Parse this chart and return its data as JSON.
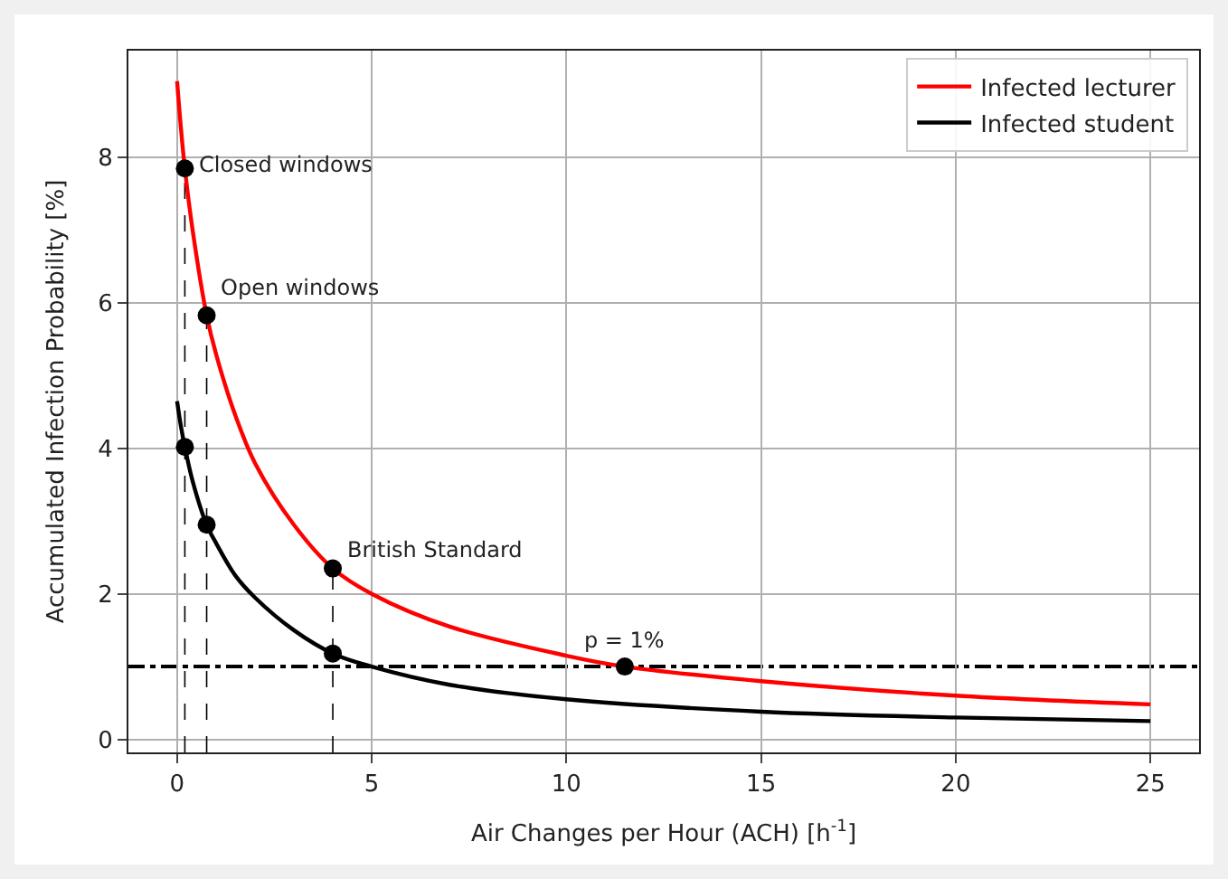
{
  "chart_data": {
    "type": "line",
    "xlabel": "Air Changes per Hour (ACH) [h$^{-1}$]",
    "ylabel": "Accumulated Infection Probability [%]",
    "xlim": [
      -1.25,
      26.25
    ],
    "xticks": [
      0,
      5,
      10,
      15,
      20,
      25
    ],
    "ylim": [
      -0.18,
      9.47
    ],
    "yticks": [
      0,
      2,
      4,
      6,
      8
    ],
    "grid": true,
    "legend": "top right",
    "series": [
      {
        "color": "#000000",
        "line_style": "dashed",
        "x": [
          0.2,
          0.2
        ],
        "values": [
          -0.18,
          7.85
        ]
      },
      {
        "color": "#000000",
        "line_style": "dashed",
        "x": [
          0.76,
          0.76
        ],
        "values": [
          -0.18,
          5.83
        ]
      },
      {
        "color": "#000000",
        "line_style": "dashed",
        "x": [
          4,
          4
        ],
        "values": [
          -0.18,
          2.35
        ]
      },
      {
        "name": "Infected lecturer",
        "color": "#ff0000",
        "line_style": "solid",
        "x": [
          0,
          0.1,
          0.2,
          0.4,
          0.76,
          1,
          1.5,
          2,
          3,
          4,
          5,
          7,
          10,
          11.5,
          15,
          20,
          25
        ],
        "values": [
          9.05,
          8.4,
          7.85,
          7.0,
          5.83,
          5.3,
          4.45,
          3.8,
          2.95,
          2.35,
          2.0,
          1.55,
          1.15,
          1.0,
          0.8,
          0.6,
          0.48
        ]
      },
      {
        "name": "Infected student",
        "color": "#000000",
        "line_style": "solid",
        "x": [
          0,
          0.1,
          0.2,
          0.4,
          0.76,
          1,
          1.5,
          2,
          3,
          4,
          5,
          7,
          10,
          15,
          20,
          25
        ],
        "values": [
          4.65,
          4.3,
          4.02,
          3.55,
          2.95,
          2.7,
          2.25,
          1.95,
          1.5,
          1.18,
          1.0,
          0.75,
          0.55,
          0.38,
          0.3,
          0.25
        ]
      },
      {
        "type": "scatter",
        "color": "#000000",
        "marker": "circle",
        "x": [
          0.2,
          0.76,
          4,
          11.5,
          0.2,
          0.76,
          4
        ],
        "values": [
          7.85,
          5.83,
          2.35,
          1.0,
          4.02,
          2.95,
          1.18
        ]
      }
    ],
    "ref_lines": [
      {
        "axis": "y",
        "value": 1,
        "color": "#000000",
        "line_style": "dashed"
      }
    ],
    "annotations": [
      {
        "text": "Closed windows",
        "x": 0.2,
        "y": 7.85
      },
      {
        "text": "Open windows",
        "x": 0.76,
        "y": 5.83
      },
      {
        "text": "British Standard",
        "x": 4,
        "y": 2.35
      },
      {
        "text": "p = 1%",
        "x": 11.5,
        "y": 1.0
      }
    ]
  }
}
